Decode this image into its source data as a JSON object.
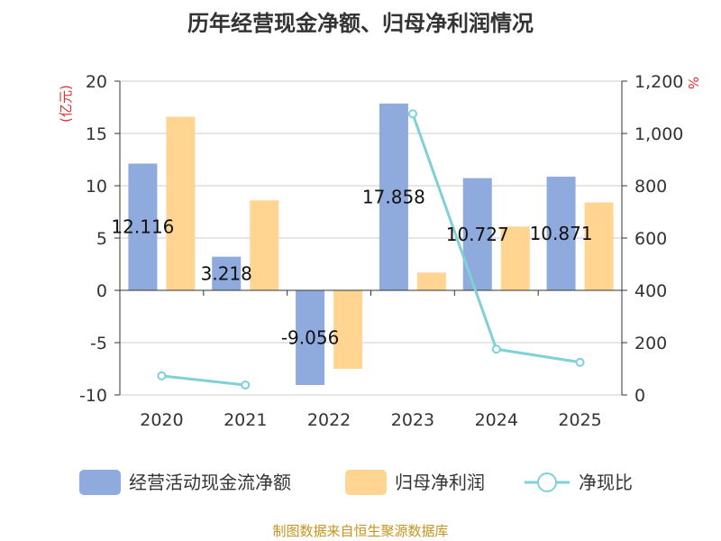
{
  "chart_data": {
    "type": "bar",
    "title": "历年经营现金净额、归母净利润情况",
    "categories": [
      "2020",
      "2021",
      "2022",
      "2023",
      "2024",
      "2025"
    ],
    "y_left": {
      "unit": "(亿元)",
      "ticks": [
        "20",
        "15",
        "10",
        "5",
        "0",
        "-5",
        "-10"
      ],
      "range": [
        -10,
        20
      ]
    },
    "y_right": {
      "unit": "%",
      "ticks": [
        "1,200",
        "1,000",
        "800",
        "600",
        "400",
        "200",
        "0"
      ],
      "range": [
        0,
        1200
      ]
    },
    "series": [
      {
        "name": "经营活动现金流净额",
        "type": "bar",
        "color": "#8faadc",
        "values": [
          12.116,
          3.218,
          -9.056,
          17.858,
          10.727,
          10.871
        ],
        "labels": [
          "12.116",
          "3.218",
          "-9.056",
          "17.858",
          "10.727",
          "10.871"
        ]
      },
      {
        "name": "归母净利润",
        "type": "bar",
        "color": "#ffd591",
        "values": [
          16.6,
          8.6,
          -7.5,
          1.7,
          6.1,
          8.4
        ]
      },
      {
        "name": "净现比",
        "type": "line",
        "color": "#7fd1d6",
        "axis": "right",
        "values": [
          73,
          38,
          null,
          1075,
          175,
          125
        ]
      }
    ]
  },
  "source": "制图数据来自恒生聚源数据库"
}
